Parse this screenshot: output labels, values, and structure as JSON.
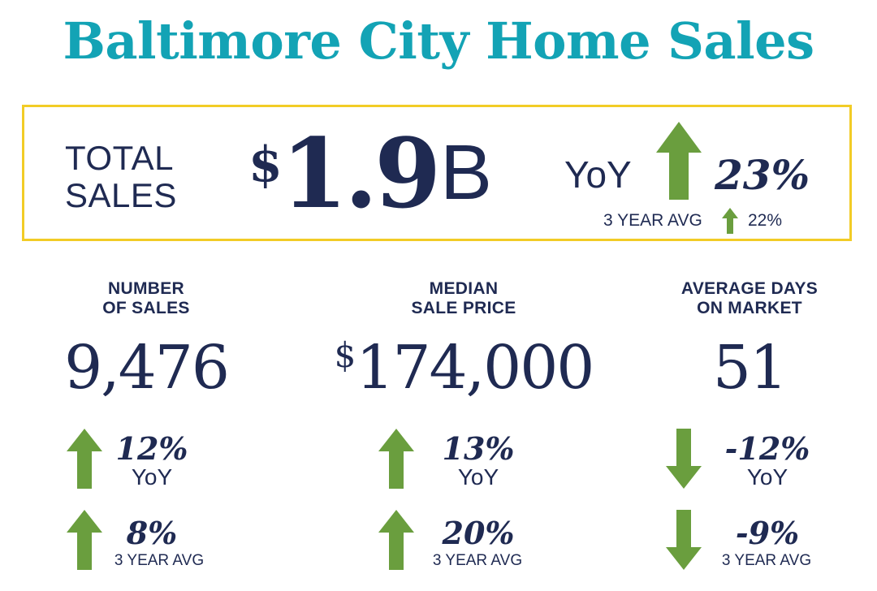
{
  "title": "Baltimore City Home Sales",
  "colors": {
    "title": "#13a3b5",
    "text": "#1f2a52",
    "frame": "#f2cc26",
    "arrow": "#6a9e3e"
  },
  "total_sales": {
    "label_line1": "TOTAL",
    "label_line2": "SALES",
    "currency": "$",
    "value": "1.9",
    "unit": "B",
    "yoy_label": "YoY",
    "yoy_pct": "23%",
    "yoy_direction": "up",
    "avg_label": "3 YEAR AVG",
    "avg_pct": "22%",
    "avg_direction": "up"
  },
  "metrics": [
    {
      "header_line1": "NUMBER",
      "header_line2": "OF SALES",
      "currency": "",
      "value": "9,476",
      "yoy_pct": "12%",
      "yoy_label": "YoY",
      "yoy_direction": "up",
      "avg_pct": "8%",
      "avg_label": "3 YEAR AVG",
      "avg_direction": "up"
    },
    {
      "header_line1": "MEDIAN",
      "header_line2": "SALE PRICE",
      "currency": "$",
      "value": "174,000",
      "yoy_pct": "13%",
      "yoy_label": "YoY",
      "yoy_direction": "up",
      "avg_pct": "20%",
      "avg_label": "3 YEAR AVG",
      "avg_direction": "up"
    },
    {
      "header_line1": "AVERAGE DAYS",
      "header_line2": "ON MARKET",
      "currency": "",
      "value": "51",
      "yoy_pct": "-12%",
      "yoy_label": "YoY",
      "yoy_direction": "down",
      "avg_pct": "-9%",
      "avg_label": "3 YEAR AVG",
      "avg_direction": "down"
    }
  ]
}
